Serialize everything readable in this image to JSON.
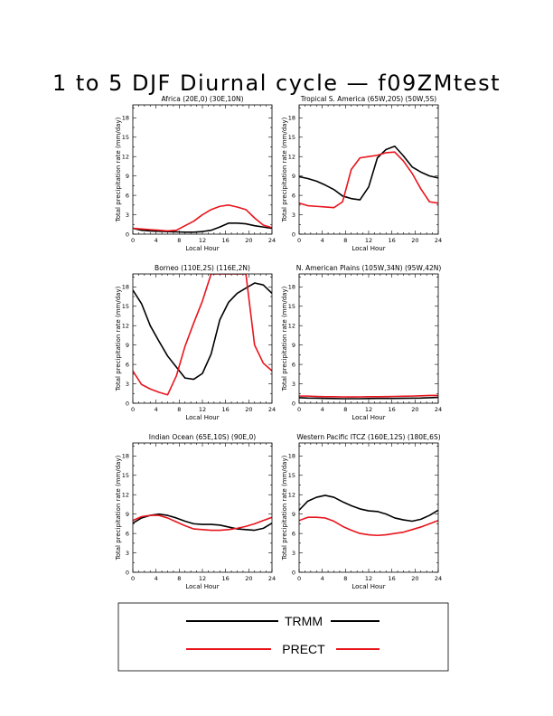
{
  "title": "1 to 5 DJF Diurnal cycle — f09ZMtest",
  "colors": {
    "TRMM": "#000000",
    "PRECT": "#e8141c"
  },
  "legend": [
    {
      "name": "TRMM",
      "color": "#000000"
    },
    {
      "name": "PRECT",
      "color": "#e8141c"
    }
  ],
  "chart_data": [
    {
      "type": "line",
      "title": "Africa (20E,0) (30E,10N)",
      "xlabel": "Local Hour",
      "ylabel": "Total precipitation rate (mm/day)",
      "xlim": [
        0,
        24
      ],
      "ylim": [
        0,
        20
      ],
      "xticks": [
        0,
        4,
        8,
        12,
        16,
        20,
        24
      ],
      "yticks": [
        0,
        3,
        6,
        9,
        12,
        15,
        18
      ],
      "x": [
        0,
        1.5,
        3,
        4.5,
        6,
        7.5,
        9,
        10.5,
        12,
        13.5,
        15,
        16.5,
        18,
        19.5,
        21,
        22.5,
        24
      ],
      "series": [
        {
          "name": "TRMM",
          "values": [
            0.9,
            0.6,
            0.5,
            0.45,
            0.4,
            0.35,
            0.3,
            0.3,
            0.4,
            0.6,
            1.1,
            1.7,
            1.7,
            1.6,
            1.3,
            1.1,
            0.9
          ]
        },
        {
          "name": "PRECT",
          "values": [
            0.9,
            0.8,
            0.7,
            0.6,
            0.5,
            0.6,
            1.3,
            2.0,
            3.0,
            3.8,
            4.3,
            4.5,
            4.2,
            3.8,
            2.5,
            1.4,
            1.0
          ]
        }
      ]
    },
    {
      "type": "line",
      "title": "Tropical S. America (65W,20S) (50W,5S)",
      "xlabel": "Local Hour",
      "ylabel": "Total precipitation rate (mm/day)",
      "xlim": [
        0,
        24
      ],
      "ylim": [
        0,
        20
      ],
      "xticks": [
        0,
        4,
        8,
        12,
        16,
        20,
        24
      ],
      "yticks": [
        0,
        3,
        6,
        9,
        12,
        15,
        18
      ],
      "x": [
        0,
        1.5,
        3,
        4.5,
        6,
        7.5,
        9,
        10.5,
        12,
        13.5,
        15,
        16.5,
        18,
        19.5,
        21,
        22.5,
        24
      ],
      "series": [
        {
          "name": "TRMM",
          "values": [
            8.9,
            8.6,
            8.2,
            7.6,
            6.9,
            5.9,
            5.5,
            5.3,
            7.3,
            11.8,
            13.1,
            13.6,
            12.1,
            10.4,
            9.6,
            9.0,
            8.7
          ]
        },
        {
          "name": "PRECT",
          "values": [
            4.8,
            4.4,
            4.3,
            4.2,
            4.1,
            5.0,
            10.0,
            11.8,
            12.0,
            12.2,
            12.6,
            12.7,
            11.3,
            9.4,
            7.0,
            5.0,
            4.8
          ]
        }
      ]
    },
    {
      "type": "line",
      "title": "Borneo (110E,2S) (116E,2N)",
      "xlabel": "Local Hour",
      "ylabel": "Total precipitation rate (mm/day)",
      "xlim": [
        0,
        24
      ],
      "ylim": [
        0,
        20
      ],
      "xticks": [
        0,
        4,
        8,
        12,
        16,
        20,
        24
      ],
      "yticks": [
        0,
        3,
        6,
        9,
        12,
        15,
        18
      ],
      "x": [
        0,
        1.5,
        3,
        4.5,
        6,
        7.5,
        9,
        10.5,
        12,
        13.5,
        15,
        16.5,
        18,
        19.5,
        21,
        22.5,
        24
      ],
      "series": [
        {
          "name": "TRMM",
          "values": [
            17.5,
            15.4,
            12.0,
            9.6,
            7.3,
            5.6,
            3.9,
            3.7,
            4.6,
            7.6,
            12.9,
            15.6,
            17.0,
            17.8,
            18.6,
            18.3,
            17.0
          ]
        },
        {
          "name": "PRECT",
          "values": [
            5.0,
            2.9,
            2.2,
            1.7,
            1.3,
            4.2,
            8.8,
            12.4,
            15.8,
            20.0,
            20.0,
            20.0,
            20.0,
            20.0,
            9.0,
            6.2,
            5.0
          ]
        }
      ]
    },
    {
      "type": "line",
      "title": "N. American Plains (105W,34N) (95W,42N)",
      "xlabel": "Local Hour",
      "ylabel": "Total precipitation rate (mm/day)",
      "xlim": [
        0,
        24
      ],
      "ylim": [
        0,
        20
      ],
      "xticks": [
        0,
        4,
        8,
        12,
        16,
        20,
        24
      ],
      "yticks": [
        0,
        3,
        6,
        9,
        12,
        15,
        18
      ],
      "x": [
        0,
        1.5,
        3,
        4.5,
        6,
        7.5,
        9,
        10.5,
        12,
        13.5,
        15,
        16.5,
        18,
        19.5,
        21,
        22.5,
        24
      ],
      "series": [
        {
          "name": "TRMM",
          "values": [
            0.85,
            0.8,
            0.78,
            0.75,
            0.72,
            0.7,
            0.7,
            0.7,
            0.72,
            0.74,
            0.75,
            0.75,
            0.76,
            0.78,
            0.8,
            0.85,
            0.9
          ]
        },
        {
          "name": "PRECT",
          "values": [
            1.1,
            1.1,
            1.05,
            1.0,
            1.0,
            0.98,
            0.97,
            0.98,
            1.0,
            1.0,
            1.02,
            1.05,
            1.08,
            1.1,
            1.15,
            1.2,
            1.2
          ]
        }
      ]
    },
    {
      "type": "line",
      "title": "Indian Ocean (65E,10S) (90E,0)",
      "xlabel": "Local Hour",
      "ylabel": "Total precipitation rate (mm/day)",
      "xlim": [
        0,
        24
      ],
      "ylim": [
        0,
        20
      ],
      "xticks": [
        0,
        4,
        8,
        12,
        16,
        20,
        24
      ],
      "yticks": [
        0,
        3,
        6,
        9,
        12,
        15,
        18
      ],
      "x": [
        0,
        1.5,
        3,
        4.5,
        6,
        7.5,
        9,
        10.5,
        12,
        13.5,
        15,
        16.5,
        18,
        19.5,
        21,
        22.5,
        24
      ],
      "series": [
        {
          "name": "TRMM",
          "values": [
            7.6,
            8.4,
            8.8,
            9.0,
            8.8,
            8.4,
            7.9,
            7.5,
            7.4,
            7.4,
            7.3,
            7.0,
            6.7,
            6.6,
            6.5,
            6.8,
            7.6
          ]
        },
        {
          "name": "PRECT",
          "values": [
            8.0,
            8.6,
            8.8,
            8.8,
            8.4,
            7.8,
            7.2,
            6.7,
            6.6,
            6.5,
            6.5,
            6.6,
            6.8,
            7.1,
            7.5,
            8.0,
            8.5
          ]
        }
      ]
    },
    {
      "type": "line",
      "title": "Western Pacific ITCZ (160E,12S) (180E,6S)",
      "xlabel": "Local Hour",
      "ylabel": "Total precipitation rate (mm/day)",
      "xlim": [
        0,
        24
      ],
      "ylim": [
        0,
        20
      ],
      "xticks": [
        0,
        4,
        8,
        12,
        16,
        20,
        24
      ],
      "yticks": [
        0,
        3,
        6,
        9,
        12,
        15,
        18
      ],
      "x": [
        0,
        1.5,
        3,
        4.5,
        6,
        7.5,
        9,
        10.5,
        12,
        13.5,
        15,
        16.5,
        18,
        19.5,
        21,
        22.5,
        24
      ],
      "series": [
        {
          "name": "TRMM",
          "values": [
            9.6,
            11.0,
            11.6,
            11.9,
            11.6,
            10.9,
            10.3,
            9.8,
            9.5,
            9.4,
            9.0,
            8.4,
            8.1,
            7.9,
            8.2,
            8.8,
            9.6
          ]
        },
        {
          "name": "PRECT",
          "values": [
            8.0,
            8.5,
            8.5,
            8.4,
            7.9,
            7.1,
            6.5,
            6.0,
            5.8,
            5.7,
            5.8,
            6.0,
            6.2,
            6.6,
            7.0,
            7.5,
            8.0
          ]
        }
      ]
    }
  ]
}
